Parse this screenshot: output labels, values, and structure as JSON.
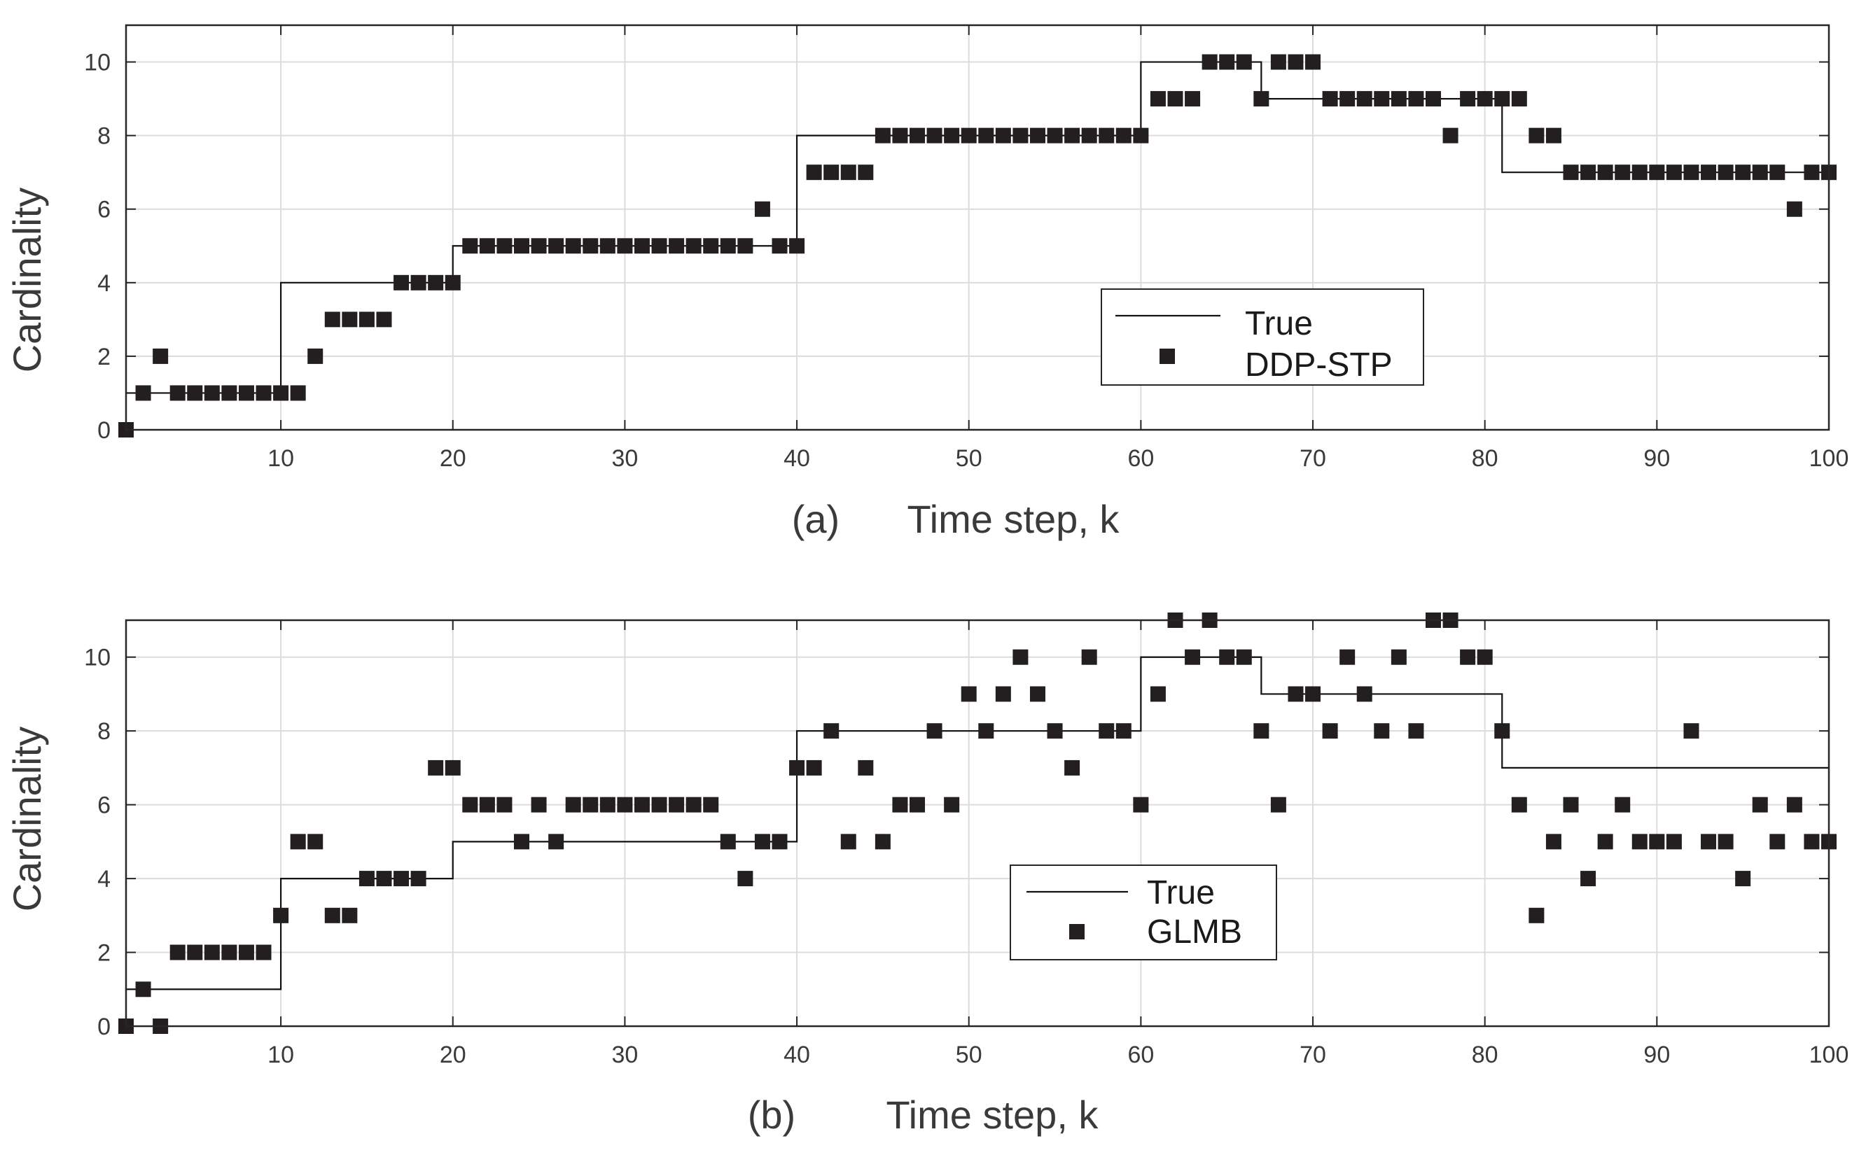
{
  "chart_data": [
    {
      "type": "line+scatter",
      "panel_label": "(a)",
      "xlabel": "Time step, k",
      "ylabel": "Cardinality",
      "xlim": [
        1,
        100
      ],
      "ylim": [
        0,
        11
      ],
      "xticks": [
        10,
        20,
        30,
        40,
        50,
        60,
        70,
        80,
        90,
        100
      ],
      "yticks": [
        0,
        2,
        4,
        6,
        8,
        10
      ],
      "grid": true,
      "legend_position": "center-right",
      "series": [
        {
          "name": "True",
          "kind": "step",
          "steps": [
            {
              "from": 1,
              "to": 10,
              "value": 1
            },
            {
              "from": 10,
              "to": 20,
              "value": 4
            },
            {
              "from": 20,
              "to": 40,
              "value": 5
            },
            {
              "from": 40,
              "to": 60,
              "value": 8
            },
            {
              "from": 60,
              "to": 67,
              "value": 10
            },
            {
              "from": 67,
              "to": 81,
              "value": 9
            },
            {
              "from": 81,
              "to": 100,
              "value": 7
            }
          ]
        },
        {
          "name": "DDP-STP",
          "kind": "markers",
          "values": [
            0,
            1,
            2,
            1,
            1,
            1,
            1,
            1,
            1,
            1,
            1,
            2,
            3,
            3,
            3,
            3,
            4,
            4,
            4,
            4,
            5,
            5,
            5,
            5,
            5,
            5,
            5,
            5,
            5,
            5,
            5,
            5,
            5,
            5,
            5,
            5,
            5,
            6,
            5,
            5,
            7,
            7,
            7,
            7,
            8,
            8,
            8,
            8,
            8,
            8,
            8,
            8,
            8,
            8,
            8,
            8,
            8,
            8,
            8,
            8,
            9,
            9,
            9,
            10,
            10,
            10,
            9,
            10,
            10,
            10,
            9,
            9,
            9,
            9,
            9,
            9,
            9,
            8,
            9,
            9,
            9,
            9,
            8,
            8,
            7,
            7,
            7,
            7,
            7,
            7,
            7,
            7,
            7,
            7,
            7,
            7,
            7,
            6,
            7,
            7
          ]
        }
      ]
    },
    {
      "type": "line+scatter",
      "panel_label": "(b)",
      "xlabel": "Time step, k",
      "ylabel": "Cardinality",
      "xlim": [
        1,
        100
      ],
      "ylim": [
        0,
        11
      ],
      "xticks": [
        10,
        20,
        30,
        40,
        50,
        60,
        70,
        80,
        90,
        100
      ],
      "yticks": [
        0,
        2,
        4,
        6,
        8,
        10
      ],
      "grid": true,
      "legend_position": "center",
      "series": [
        {
          "name": "True",
          "kind": "step",
          "steps": [
            {
              "from": 1,
              "to": 10,
              "value": 1
            },
            {
              "from": 10,
              "to": 20,
              "value": 4
            },
            {
              "from": 20,
              "to": 40,
              "value": 5
            },
            {
              "from": 40,
              "to": 60,
              "value": 8
            },
            {
              "from": 60,
              "to": 67,
              "value": 10
            },
            {
              "from": 67,
              "to": 81,
              "value": 9
            },
            {
              "from": 81,
              "to": 100,
              "value": 7
            }
          ]
        },
        {
          "name": "GLMB",
          "kind": "markers",
          "values": [
            0,
            1,
            0,
            2,
            2,
            2,
            2,
            2,
            2,
            3,
            5,
            5,
            3,
            3,
            4,
            4,
            4,
            4,
            7,
            7,
            6,
            6,
            6,
            5,
            6,
            5,
            6,
            6,
            6,
            6,
            6,
            6,
            6,
            6,
            6,
            5,
            4,
            5,
            5,
            7,
            7,
            8,
            5,
            7,
            5,
            6,
            6,
            8,
            6,
            9,
            8,
            9,
            10,
            9,
            8,
            7,
            10,
            8,
            8,
            6,
            9,
            11,
            10,
            11,
            10,
            10,
            8,
            6,
            9,
            9,
            8,
            10,
            9,
            8,
            10,
            8,
            11,
            11,
            10,
            10,
            8,
            6,
            3,
            5,
            6,
            4,
            5,
            6,
            5,
            5,
            5,
            8,
            5,
            5,
            4,
            6,
            5,
            6,
            5,
            5
          ]
        }
      ]
    }
  ],
  "colors": {
    "marker": "#231f20",
    "line": "#111111",
    "grid": "#dcdcdc",
    "axis": "#262626",
    "text": "#3a3a3a"
  }
}
